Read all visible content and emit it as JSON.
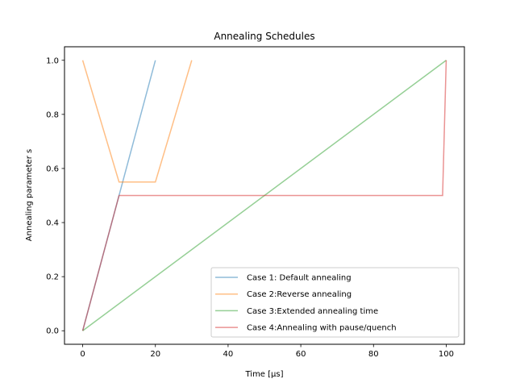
{
  "chart_data": {
    "type": "line",
    "title": "Annealing Schedules",
    "xlabel": "Time [μs]",
    "ylabel": "Annealing parameter s",
    "xlim": [
      -5,
      105
    ],
    "ylim": [
      -0.05,
      1.05
    ],
    "xticks": [
      0,
      20,
      40,
      60,
      80,
      100
    ],
    "xtick_labels": [
      "0",
      "20",
      "40",
      "60",
      "80",
      "100"
    ],
    "yticks": [
      0.0,
      0.2,
      0.4,
      0.6,
      0.8,
      1.0
    ],
    "ytick_labels": [
      "0.0",
      "0.2",
      "0.4",
      "0.6",
      "0.8",
      "1.0"
    ],
    "grid": false,
    "legend_position": "lower-right",
    "series": [
      {
        "name": "Case 1: Default annealing",
        "color": "#1f77b4",
        "x": [
          0,
          20
        ],
        "y": [
          0,
          1
        ]
      },
      {
        "name": "Case 2:Reverse annealing",
        "color": "#ff7f0e",
        "x": [
          0,
          10,
          20,
          30
        ],
        "y": [
          1.0,
          0.55,
          0.55,
          1.0
        ]
      },
      {
        "name": "Case 3:Extended annealing time",
        "color": "#2ca02c",
        "x": [
          0,
          100
        ],
        "y": [
          0,
          1
        ]
      },
      {
        "name": "Case 4:Annealing with pause/quench",
        "color": "#d62728",
        "x": [
          0,
          10,
          99,
          100
        ],
        "y": [
          0,
          0.5,
          0.5,
          1.0
        ]
      }
    ]
  }
}
